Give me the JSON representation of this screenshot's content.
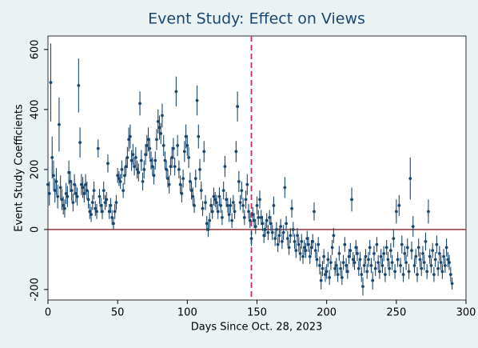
{
  "chart_data": {
    "type": "errorbar-scatter",
    "title": "Event Study: Effect on Views",
    "x_label": "Days Since Oct. 28, 2023",
    "y_label": "Event Study Coefficients",
    "xlim": [
      0,
      300
    ],
    "ylim": [
      -235,
      645
    ],
    "xticks": [
      0,
      50,
      100,
      150,
      200,
      250,
      300
    ],
    "yticks": [
      -200,
      0,
      200,
      400,
      600
    ],
    "color": "#1a476f",
    "zero_line_color": "#90353b",
    "event_line_color": "#c0306a",
    "event_day": 146,
    "x": [
      0,
      1,
      2,
      3,
      4,
      5,
      6,
      7,
      8,
      9,
      10,
      11,
      12,
      13,
      14,
      15,
      16,
      17,
      18,
      19,
      20,
      21,
      22,
      23,
      24,
      25,
      26,
      27,
      28,
      29,
      30,
      31,
      32,
      33,
      34,
      35,
      36,
      37,
      38,
      39,
      40,
      41,
      42,
      43,
      44,
      45,
      46,
      47,
      48,
      49,
      50,
      51,
      52,
      53,
      54,
      55,
      56,
      57,
      58,
      59,
      60,
      61,
      62,
      63,
      64,
      65,
      66,
      67,
      68,
      69,
      70,
      71,
      72,
      73,
      74,
      75,
      76,
      77,
      78,
      79,
      80,
      81,
      82,
      83,
      84,
      85,
      86,
      87,
      88,
      89,
      90,
      91,
      92,
      93,
      94,
      95,
      96,
      97,
      98,
      99,
      100,
      101,
      102,
      103,
      104,
      105,
      106,
      107,
      108,
      109,
      110,
      111,
      112,
      113,
      114,
      115,
      116,
      117,
      118,
      119,
      120,
      121,
      122,
      123,
      124,
      125,
      126,
      127,
      128,
      129,
      130,
      131,
      132,
      133,
      134,
      135,
      136,
      137,
      138,
      139,
      140,
      141,
      142,
      143,
      144,
      145,
      146,
      147,
      148,
      149,
      150,
      151,
      152,
      153,
      154,
      155,
      156,
      157,
      158,
      159,
      160,
      161,
      162,
      163,
      164,
      165,
      166,
      167,
      168,
      169,
      170,
      171,
      172,
      173,
      174,
      175,
      176,
      177,
      178,
      179,
      180,
      181,
      182,
      183,
      184,
      185,
      186,
      187,
      188,
      189,
      190,
      191,
      192,
      193,
      194,
      195,
      196,
      197,
      198,
      199,
      200,
      201,
      202,
      203,
      204,
      205,
      206,
      207,
      208,
      209,
      210,
      211,
      212,
      213,
      214,
      215,
      216,
      217,
      218,
      219,
      220,
      221,
      222,
      223,
      224,
      225,
      226,
      227,
      228,
      229,
      230,
      231,
      232,
      233,
      234,
      235,
      236,
      237,
      238,
      239,
      240,
      241,
      242,
      243,
      244,
      245,
      246,
      247,
      248,
      249,
      250,
      251,
      252,
      253,
      254,
      255,
      256,
      257,
      258,
      259,
      260,
      261,
      262,
      263,
      264,
      265,
      266,
      267,
      268,
      269,
      270,
      271,
      272,
      273,
      274,
      275,
      276,
      277,
      278,
      279,
      280,
      281,
      282,
      283,
      284,
      285,
      286,
      287,
      288,
      289,
      290
    ],
    "values": [
      150,
      120,
      490,
      240,
      180,
      130,
      160,
      110,
      350,
      140,
      100,
      80,
      70,
      120,
      110,
      190,
      160,
      130,
      90,
      150,
      120,
      110,
      480,
      290,
      150,
      140,
      120,
      150,
      130,
      100,
      60,
      50,
      90,
      130,
      70,
      60,
      270,
      110,
      80,
      60,
      130,
      90,
      100,
      220,
      60,
      80,
      40,
      20,
      60,
      90,
      180,
      170,
      160,
      200,
      130,
      180,
      210,
      240,
      300,
      310,
      230,
      250,
      210,
      240,
      200,
      190,
      420,
      230,
      160,
      200,
      250,
      280,
      300,
      270,
      230,
      210,
      180,
      230,
      300,
      360,
      340,
      320,
      380,
      280,
      230,
      200,
      170,
      150,
      210,
      240,
      270,
      210,
      460,
      280,
      200,
      150,
      120,
      170,
      260,
      310,
      280,
      240,
      160,
      130,
      110,
      80,
      170,
      430,
      310,
      200,
      130,
      70,
      260,
      90,
      20,
      0,
      30,
      80,
      60,
      110,
      100,
      90,
      60,
      110,
      80,
      40,
      130,
      210,
      100,
      80,
      50,
      80,
      30,
      90,
      60,
      260,
      410,
      160,
      90,
      130,
      80,
      40,
      100,
      150,
      60,
      30,
      -30,
      50,
      30,
      10,
      80,
      40,
      100,
      40,
      20,
      -20,
      0,
      30,
      -10,
      40,
      20,
      -10,
      80,
      -30,
      0,
      -50,
      -20,
      10,
      -40,
      -10,
      140,
      20,
      -30,
      -60,
      -20,
      70,
      0,
      -40,
      -70,
      -20,
      -50,
      -80,
      -40,
      -90,
      -60,
      -70,
      -30,
      -50,
      -90,
      -60,
      -40,
      60,
      -70,
      -100,
      -50,
      -120,
      -170,
      -130,
      -90,
      -150,
      -140,
      -100,
      -160,
      -110,
      -60,
      -20,
      -130,
      -120,
      -150,
      -80,
      -130,
      -160,
      -110,
      -50,
      -120,
      -140,
      -90,
      -70,
      100,
      -100,
      -110,
      -60,
      -80,
      -130,
      -100,
      -150,
      -190,
      -120,
      -90,
      -140,
      -100,
      -60,
      -120,
      -170,
      -80,
      -130,
      -50,
      -110,
      -140,
      -90,
      -120,
      -80,
      -150,
      -60,
      -100,
      -130,
      -70,
      -110,
      -30,
      -140,
      60,
      -100,
      80,
      -120,
      -50,
      -150,
      -80,
      -110,
      -60,
      -140,
      170,
      -70,
      10,
      -120,
      -90,
      -150,
      -60,
      -100,
      -130,
      -80,
      -110,
      -40,
      -140,
      60,
      -90,
      -120,
      -70,
      -150,
      -100,
      -50,
      -130,
      -80,
      -110,
      -140,
      -90,
      -120,
      -60,
      -100,
      -110,
      -150,
      -180
    ],
    "errors": [
      60,
      40,
      130,
      70,
      50,
      40,
      45,
      40,
      90,
      40,
      35,
      30,
      30,
      35,
      35,
      40,
      35,
      35,
      30,
      35,
      30,
      30,
      90,
      50,
      35,
      35,
      30,
      35,
      30,
      30,
      25,
      25,
      25,
      30,
      25,
      25,
      30,
      25,
      25,
      25,
      30,
      25,
      25,
      30,
      25,
      25,
      25,
      20,
      25,
      25,
      25,
      25,
      25,
      30,
      25,
      30,
      30,
      35,
      40,
      40,
      35,
      35,
      30,
      35,
      30,
      30,
      40,
      35,
      30,
      30,
      35,
      35,
      40,
      35,
      30,
      30,
      30,
      30,
      35,
      40,
      40,
      35,
      40,
      35,
      30,
      30,
      30,
      30,
      30,
      35,
      35,
      30,
      50,
      35,
      30,
      30,
      30,
      30,
      35,
      40,
      35,
      35,
      30,
      30,
      30,
      25,
      30,
      50,
      40,
      35,
      30,
      25,
      35,
      25,
      25,
      25,
      25,
      25,
      25,
      30,
      25,
      25,
      25,
      30,
      25,
      25,
      30,
      35,
      25,
      25,
      25,
      25,
      25,
      25,
      25,
      35,
      50,
      35,
      25,
      30,
      25,
      25,
      30,
      35,
      25,
      25,
      25,
      25,
      25,
      25,
      30,
      25,
      30,
      25,
      25,
      25,
      25,
      25,
      25,
      25,
      25,
      25,
      30,
      25,
      25,
      25,
      25,
      25,
      25,
      25,
      35,
      25,
      25,
      25,
      25,
      30,
      25,
      25,
      25,
      25,
      25,
      25,
      25,
      25,
      25,
      25,
      25,
      25,
      25,
      25,
      25,
      30,
      25,
      25,
      25,
      30,
      30,
      25,
      25,
      25,
      25,
      25,
      25,
      25,
      25,
      25,
      25,
      25,
      25,
      25,
      25,
      25,
      25,
      25,
      25,
      25,
      25,
      25,
      40,
      25,
      25,
      25,
      25,
      25,
      25,
      25,
      30,
      25,
      25,
      25,
      25,
      25,
      25,
      30,
      25,
      25,
      25,
      25,
      25,
      25,
      25,
      25,
      25,
      25,
      25,
      25,
      25,
      25,
      30,
      25,
      40,
      25,
      35,
      25,
      30,
      25,
      25,
      25,
      30,
      25,
      70,
      30,
      35,
      25,
      25,
      25,
      30,
      25,
      25,
      25,
      25,
      30,
      25,
      40,
      25,
      25,
      25,
      25,
      25,
      30,
      25,
      25,
      25,
      25,
      25,
      25,
      30,
      25,
      25,
      25,
      20
    ]
  }
}
